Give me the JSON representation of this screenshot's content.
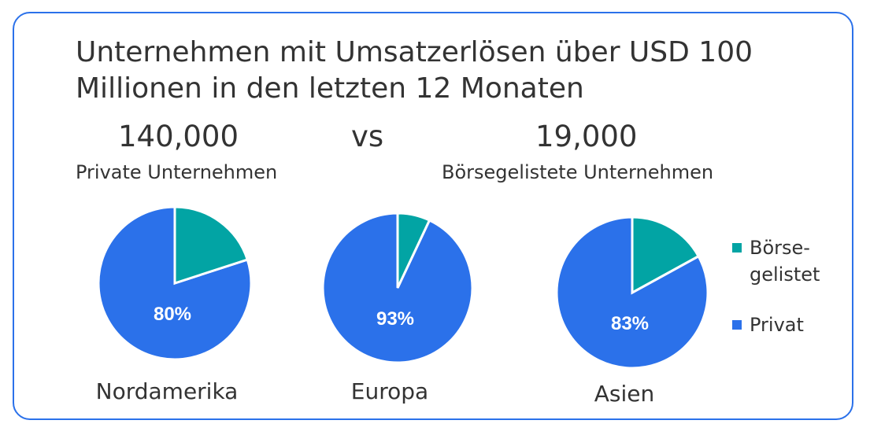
{
  "title": "Unternehmen mit Umsatzerlösen über USD 100 Millionen in den letzten 12 Monaten",
  "private_count": "140,000",
  "private_label": "Private Unternehmen",
  "vs": "vs",
  "public_count": "19,000",
  "public_label": "Börsegelistete Unternehmen",
  "colors": {
    "listed": "#02a4a4",
    "private": "#2b71ea",
    "border": "#2b71ea"
  },
  "chart_data": {
    "type": "pie",
    "legend": [
      "Börse-\ngelistet",
      "Privat"
    ],
    "legend_lines": [
      "Börse-",
      "gelistet",
      "Privat"
    ],
    "legend_position": "right",
    "pies": [
      {
        "region": "Nordamerika",
        "listed": 20,
        "private": 80,
        "label": "80%"
      },
      {
        "region": "Europa",
        "listed": 7,
        "private": 93,
        "label": "93%"
      },
      {
        "region": "Asien",
        "listed": 17,
        "private": 83,
        "label": "83%"
      }
    ]
  }
}
